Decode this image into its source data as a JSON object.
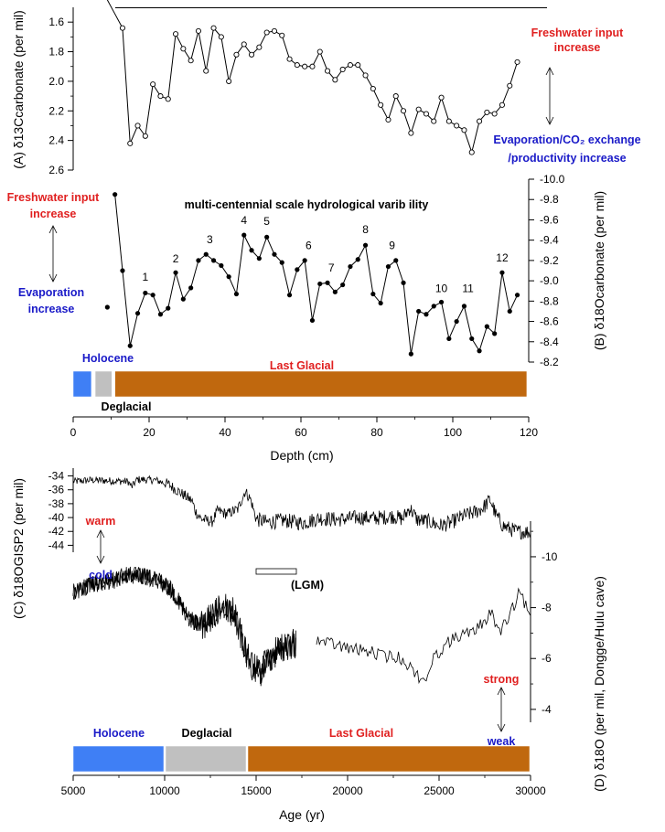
{
  "chart_data": [
    {
      "type": "line",
      "panel": "A",
      "ylabel": "(A) δ13Ccarbonate (per mil)",
      "ylim": [
        2.6,
        1.5
      ],
      "yticks": [
        1.6,
        1.8,
        2.0,
        2.2,
        2.4,
        2.6
      ],
      "yticklabels": [
        "1.6",
        "1.8",
        "2.0",
        "2.2",
        "2.4",
        "2.6"
      ],
      "xlim": [
        0,
        120
      ],
      "x": [
        13,
        15,
        17,
        19,
        21,
        23,
        25,
        27,
        29,
        31,
        33,
        35,
        37,
        39,
        41,
        43,
        45,
        47,
        49,
        51,
        53,
        55,
        57,
        59,
        61,
        63,
        65,
        67,
        69,
        71,
        73,
        75,
        77,
        79,
        81,
        83,
        85,
        87,
        89,
        91,
        93,
        95,
        97,
        99,
        101,
        103,
        105,
        107,
        109,
        111,
        113,
        115,
        117
      ],
      "values": [
        1.64,
        2.42,
        2.3,
        2.37,
        2.02,
        2.1,
        2.12,
        1.68,
        1.78,
        1.86,
        1.66,
        1.93,
        1.64,
        1.7,
        2.0,
        1.82,
        1.75,
        1.82,
        1.77,
        1.67,
        1.66,
        1.69,
        1.85,
        1.89,
        1.9,
        1.9,
        1.8,
        1.93,
        1.99,
        1.92,
        1.89,
        1.89,
        1.96,
        2.05,
        2.16,
        2.26,
        2.1,
        2.2,
        2.35,
        2.19,
        2.22,
        2.27,
        2.11,
        2.27,
        2.3,
        2.33,
        2.48,
        2.27,
        2.21,
        2.22,
        2.16,
        2.03,
        1.87
      ],
      "annotations": {
        "top_right": "Freshwater input increase",
        "top_right_line1": "Freshwater input",
        "top_right_line2": "increase",
        "bottom_right_line1": "Evaporation/CO₂ exchange",
        "bottom_right_line2": "/productivity increase"
      }
    },
    {
      "type": "line",
      "panel": "B",
      "title": "multi-centennial scale hydrological varib ility",
      "ylabel": "(B) δ18Ocarbonate (per mil)",
      "ylim": [
        -8.2,
        -10.0
      ],
      "yticks": [
        -10.0,
        -9.8,
        -9.6,
        -9.4,
        -9.2,
        -9.0,
        -8.8,
        -8.6,
        -8.4,
        -8.2
      ],
      "yticklabels": [
        "-10.0",
        "-9.8",
        "-9.6",
        "-9.4",
        "-9.2",
        "-9.0",
        "-8.8",
        "-8.6",
        "-8.4",
        "-8.2"
      ],
      "xlim": [
        0,
        120
      ],
      "xticks": [
        0,
        20,
        40,
        60,
        80,
        100,
        120
      ],
      "xticklabels": [
        "0",
        "20",
        "40",
        "60",
        "80",
        "100",
        "120"
      ],
      "xlabel": "Depth (cm)",
      "x": [
        9,
        11,
        13,
        15,
        17,
        19,
        21,
        23,
        25,
        27,
        29,
        31,
        33,
        35,
        37,
        39,
        41,
        43,
        45,
        47,
        49,
        51,
        53,
        55,
        57,
        59,
        61,
        63,
        65,
        67,
        69,
        71,
        73,
        75,
        77,
        79,
        81,
        83,
        85,
        87,
        89,
        91,
        93,
        95,
        97,
        99,
        101,
        103,
        105,
        107,
        109,
        111,
        113,
        115,
        117
      ],
      "values": [
        -8.74,
        -9.85,
        -9.1,
        -8.36,
        -8.68,
        -8.88,
        -8.86,
        -8.67,
        -8.73,
        -9.08,
        -8.82,
        -8.93,
        -9.2,
        -9.26,
        -9.2,
        -9.15,
        -9.04,
        -8.87,
        -9.45,
        -9.3,
        -9.22,
        -9.43,
        -9.26,
        -9.18,
        -8.86,
        -9.11,
        -9.2,
        -8.61,
        -8.97,
        -8.98,
        -8.89,
        -8.96,
        -9.14,
        -9.21,
        -9.35,
        -8.87,
        -8.78,
        -9.14,
        -9.2,
        -8.98,
        -8.28,
        -8.7,
        -8.67,
        -8.75,
        -8.79,
        -8.43,
        -8.6,
        -8.75,
        -8.43,
        -8.31,
        -8.55,
        -8.48,
        -9.08,
        -8.7,
        -8.86
      ],
      "event_labels": [
        "1",
        "2",
        "3",
        "4",
        "5",
        "6",
        "7",
        "8",
        "9",
        "10",
        "11",
        "12"
      ],
      "event_x": [
        19,
        27,
        36,
        45,
        51,
        62,
        68,
        77,
        84,
        97,
        104,
        113
      ],
      "event_y": [
        -9.0,
        -9.18,
        -9.37,
        -9.56,
        -9.55,
        -9.31,
        -9.09,
        -9.47,
        -9.31,
        -8.89,
        -8.89,
        -9.19
      ],
      "annotations": {
        "left_top_line1": "Freshwater input",
        "left_top_line2": "increase",
        "left_bottom_line1": "Evaporation",
        "left_bottom_line2": "increase"
      },
      "periods": [
        {
          "label": "Holocene",
          "start": 0,
          "end": 4.8,
          "color": "#3f7ff5"
        },
        {
          "label": "Deglacial",
          "start": 5.8,
          "end": 10.2,
          "color": "#c0c0c0"
        },
        {
          "label": "Last Glacial",
          "start": 11.0,
          "end": 119.5,
          "color": "#c0680e"
        }
      ]
    },
    {
      "type": "line",
      "panel": "C",
      "ylabel": "(C) δ18OGISP2 (per mil)",
      "ylim": [
        -45,
        -33.4
      ],
      "yticks": [
        -34,
        -36,
        -38,
        -40,
        -42,
        -44
      ],
      "yticklabels": [
        "-34",
        "-36",
        "-38",
        "-40",
        "-42",
        "-44"
      ],
      "xlim": [
        5000,
        30000
      ],
      "annotations": {
        "up": "warm",
        "down": "cold",
        "lgm": "(LGM)"
      },
      "lgm_range": [
        15000,
        17200
      ]
    },
    {
      "type": "line",
      "panel": "D",
      "ylabel": "(D) δ18O (per mil, Dongge/Hulu cave)",
      "ylim": [
        -3.6,
        -11.4
      ],
      "yticks": [
        -10,
        -8,
        -6,
        -4
      ],
      "yticklabels": [
        "-10",
        "-8",
        "-6",
        "-4"
      ],
      "xlim": [
        5000,
        30000
      ],
      "xticks": [
        5000,
        10000,
        15000,
        20000,
        25000,
        30000
      ],
      "xticklabels": [
        "5000",
        "10000",
        "15000",
        "20000",
        "25000",
        "30000"
      ],
      "xlabel": "Age (yr)",
      "annotations": {
        "up": "strong",
        "down": "weak"
      },
      "periods": [
        {
          "label": "Holocene",
          "start": 5000,
          "end": 9950,
          "color": "#3f7ff5"
        },
        {
          "label": "Deglacial",
          "start": 10050,
          "end": 14450,
          "color": "#c0c0c0"
        },
        {
          "label": "Last Glacial",
          "start": 14550,
          "end": 29950,
          "color": "#c0680e"
        }
      ]
    }
  ]
}
